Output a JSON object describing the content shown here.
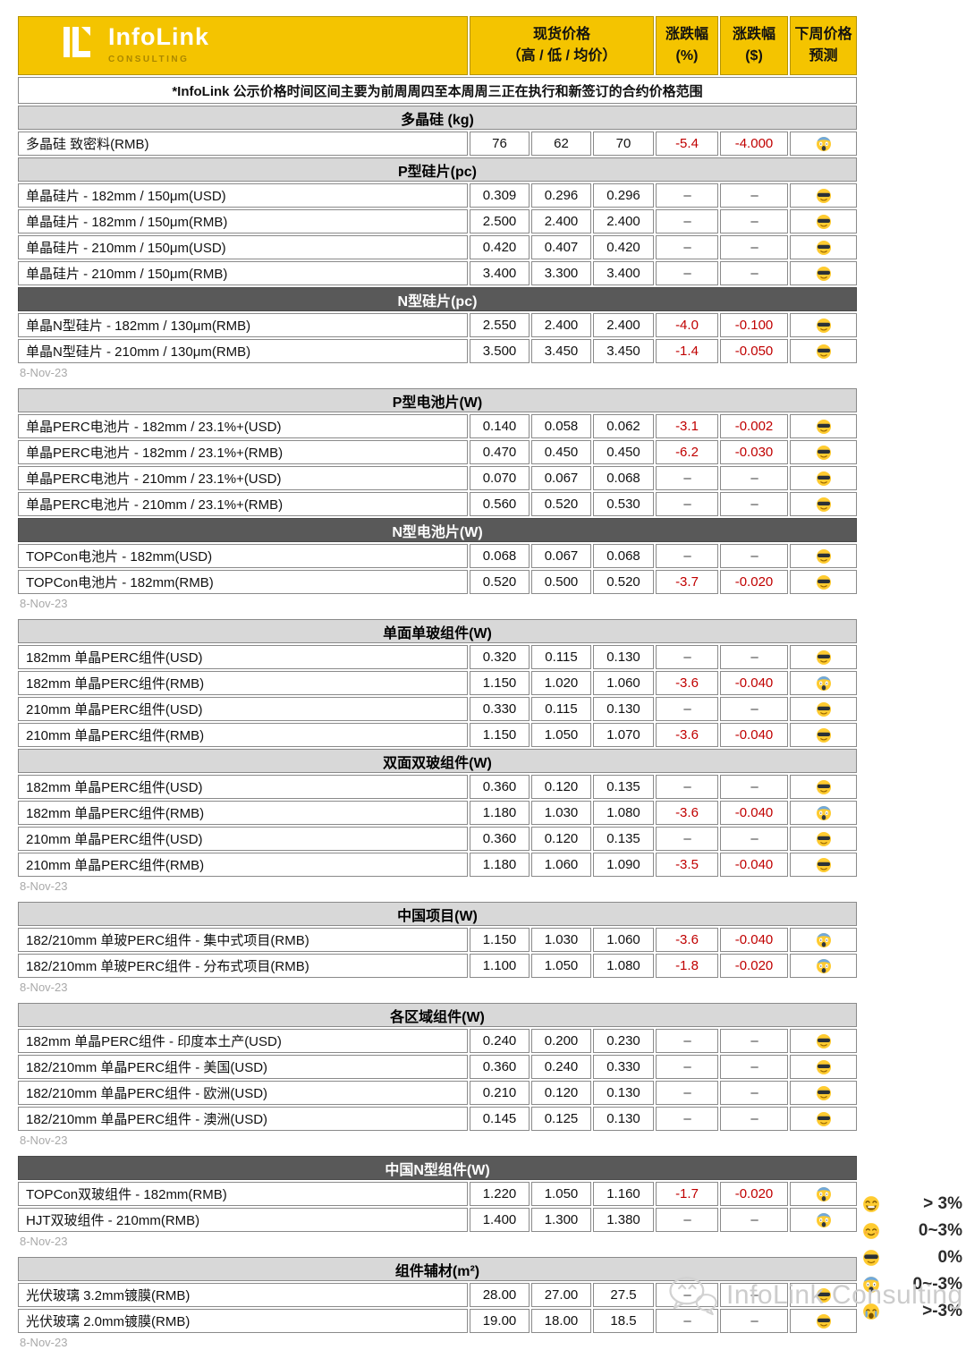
{
  "brand": {
    "name": "InfoLink",
    "sub": "CONSULTING"
  },
  "colors": {
    "brand_yellow": "#F4C400",
    "dark_header": "#595959",
    "light_header": "#D8D8D8",
    "negative_red": "#C00000"
  },
  "table_header": {
    "spot": "现货价格",
    "spot_sub": "（高 / 低 / 均价）",
    "chg_pct": "涨跌幅",
    "chg_pct_sub": "(%)",
    "chg_usd": "涨跌幅",
    "chg_usd_sub": "($)",
    "forecast": "下周价格",
    "forecast_sub": "预测"
  },
  "disclaimer": "*InfoLink 公示价格时间区间主要为前周周四至本周周三正在执行和新签订的合约价格范围",
  "groups": [
    {
      "date": "8-Nov-23",
      "sections": [
        {
          "title": "多晶硅 (kg)",
          "style": "light",
          "rows": [
            {
              "name": "多晶硅 致密料(RMB)",
              "high": "76",
              "low": "62",
              "avg": "70",
              "pct": "-5.4",
              "chg": "-4.000",
              "forecast": "scream"
            }
          ]
        },
        {
          "title": "P型硅片(pc)",
          "style": "light",
          "rows": [
            {
              "name": "单晶硅片 - 182mm / 150μm(USD)",
              "high": "0.309",
              "low": "0.296",
              "avg": "0.296",
              "pct": "–",
              "chg": "–",
              "forecast": "sunglasses"
            },
            {
              "name": "单晶硅片 - 182mm / 150μm(RMB)",
              "high": "2.500",
              "low": "2.400",
              "avg": "2.400",
              "pct": "–",
              "chg": "–",
              "forecast": "sunglasses"
            },
            {
              "name": "单晶硅片 - 210mm / 150μm(USD)",
              "high": "0.420",
              "low": "0.407",
              "avg": "0.420",
              "pct": "–",
              "chg": "–",
              "forecast": "sunglasses"
            },
            {
              "name": "单晶硅片 - 210mm / 150μm(RMB)",
              "high": "3.400",
              "low": "3.300",
              "avg": "3.400",
              "pct": "–",
              "chg": "–",
              "forecast": "sunglasses"
            }
          ]
        },
        {
          "title": "N型硅片(pc)",
          "style": "dark",
          "rows": [
            {
              "name": "单晶N型硅片 - 182mm / 130μm(RMB)",
              "high": "2.550",
              "low": "2.400",
              "avg": "2.400",
              "pct": "-4.0",
              "chg": "-0.100",
              "forecast": "sunglasses"
            },
            {
              "name": "单晶N型硅片 - 210mm / 130μm(RMB)",
              "high": "3.500",
              "low": "3.450",
              "avg": "3.450",
              "pct": "-1.4",
              "chg": "-0.050",
              "forecast": "sunglasses"
            }
          ]
        }
      ]
    },
    {
      "date": "8-Nov-23",
      "sections": [
        {
          "title": "P型电池片(W)",
          "style": "light",
          "rows": [
            {
              "name": "单晶PERC电池片 - 182mm / 23.1%+(USD)",
              "high": "0.140",
              "low": "0.058",
              "avg": "0.062",
              "pct": "-3.1",
              "chg": "-0.002",
              "forecast": "sunglasses"
            },
            {
              "name": "单晶PERC电池片 - 182mm / 23.1%+(RMB)",
              "high": "0.470",
              "low": "0.450",
              "avg": "0.450",
              "pct": "-6.2",
              "chg": "-0.030",
              "forecast": "sunglasses"
            },
            {
              "name": "单晶PERC电池片 - 210mm / 23.1%+(USD)",
              "high": "0.070",
              "low": "0.067",
              "avg": "0.068",
              "pct": "–",
              "chg": "–",
              "forecast": "sunglasses"
            },
            {
              "name": "单晶PERC电池片 - 210mm / 23.1%+(RMB)",
              "high": "0.560",
              "low": "0.520",
              "avg": "0.530",
              "pct": "–",
              "chg": "–",
              "forecast": "sunglasses"
            }
          ]
        },
        {
          "title": "N型电池片(W)",
          "style": "dark",
          "rows": [
            {
              "name": "TOPCon电池片 - 182mm(USD)",
              "high": "0.068",
              "low": "0.067",
              "avg": "0.068",
              "pct": "–",
              "chg": "–",
              "forecast": "sunglasses"
            },
            {
              "name": "TOPCon电池片 - 182mm(RMB)",
              "high": "0.520",
              "low": "0.500",
              "avg": "0.520",
              "pct": "-3.7",
              "chg": "-0.020",
              "forecast": "sunglasses"
            }
          ]
        }
      ]
    },
    {
      "date": "8-Nov-23",
      "sections": [
        {
          "title": "单面单玻组件(W)",
          "style": "light",
          "rows": [
            {
              "name": "182mm 单晶PERC组件(USD)",
              "high": "0.320",
              "low": "0.115",
              "avg": "0.130",
              "pct": "–",
              "chg": "–",
              "forecast": "sunglasses"
            },
            {
              "name": "182mm 单晶PERC组件(RMB)",
              "high": "1.150",
              "low": "1.020",
              "avg": "1.060",
              "pct": "-3.6",
              "chg": "-0.040",
              "forecast": "scream"
            },
            {
              "name": "210mm 单晶PERC组件(USD)",
              "high": "0.330",
              "low": "0.115",
              "avg": "0.130",
              "pct": "–",
              "chg": "–",
              "forecast": "sunglasses"
            },
            {
              "name": "210mm 单晶PERC组件(RMB)",
              "high": "1.150",
              "low": "1.050",
              "avg": "1.070",
              "pct": "-3.6",
              "chg": "-0.040",
              "forecast": "sunglasses"
            }
          ]
        },
        {
          "title": "双面双玻组件(W)",
          "style": "light",
          "rows": [
            {
              "name": "182mm 单晶PERC组件(USD)",
              "high": "0.360",
              "low": "0.120",
              "avg": "0.135",
              "pct": "–",
              "chg": "–",
              "forecast": "sunglasses"
            },
            {
              "name": "182mm 单晶PERC组件(RMB)",
              "high": "1.180",
              "low": "1.030",
              "avg": "1.080",
              "pct": "-3.6",
              "chg": "-0.040",
              "forecast": "scream"
            },
            {
              "name": "210mm 单晶PERC组件(USD)",
              "high": "0.360",
              "low": "0.120",
              "avg": "0.135",
              "pct": "–",
              "chg": "–",
              "forecast": "sunglasses"
            },
            {
              "name": "210mm 单晶PERC组件(RMB)",
              "high": "1.180",
              "low": "1.060",
              "avg": "1.090",
              "pct": "-3.5",
              "chg": "-0.040",
              "forecast": "sunglasses"
            }
          ]
        }
      ]
    },
    {
      "date": "8-Nov-23",
      "sections": [
        {
          "title": "中国项目(W)",
          "style": "light",
          "rows": [
            {
              "name": "182/210mm 单玻PERC组件 - 集中式项目(RMB)",
              "high": "1.150",
              "low": "1.030",
              "avg": "1.060",
              "pct": "-3.6",
              "chg": "-0.040",
              "forecast": "scream"
            },
            {
              "name": "182/210mm 单玻PERC组件 - 分布式项目(RMB)",
              "high": "1.100",
              "low": "1.050",
              "avg": "1.080",
              "pct": "-1.8",
              "chg": "-0.020",
              "forecast": "scream"
            }
          ]
        }
      ]
    },
    {
      "date": "8-Nov-23",
      "sections": [
        {
          "title": "各区域组件(W)",
          "style": "light",
          "rows": [
            {
              "name": "182mm 单晶PERC组件 - 印度本土产(USD)",
              "high": "0.240",
              "low": "0.200",
              "avg": "0.230",
              "pct": "–",
              "chg": "–",
              "forecast": "sunglasses"
            },
            {
              "name": "182/210mm 单晶PERC组件 - 美国(USD)",
              "high": "0.360",
              "low": "0.240",
              "avg": "0.330",
              "pct": "–",
              "chg": "–",
              "forecast": "sunglasses"
            },
            {
              "name": "182/210mm 单晶PERC组件 - 欧洲(USD)",
              "high": "0.210",
              "low": "0.120",
              "avg": "0.130",
              "pct": "–",
              "chg": "–",
              "forecast": "sunglasses"
            },
            {
              "name": "182/210mm 单晶PERC组件 - 澳洲(USD)",
              "high": "0.145",
              "low": "0.125",
              "avg": "0.130",
              "pct": "–",
              "chg": "–",
              "forecast": "sunglasses"
            }
          ]
        }
      ]
    },
    {
      "date": "8-Nov-23",
      "sections": [
        {
          "title": "中国N型组件(W)",
          "style": "dark",
          "rows": [
            {
              "name": "TOPCon双玻组件 - 182mm(RMB)",
              "high": "1.220",
              "low": "1.050",
              "avg": "1.160",
              "pct": "-1.7",
              "chg": "-0.020",
              "forecast": "scream"
            },
            {
              "name": "HJT双玻组件 - 210mm(RMB)",
              "high": "1.400",
              "low": "1.300",
              "avg": "1.380",
              "pct": "–",
              "chg": "–",
              "forecast": "scream"
            }
          ]
        }
      ]
    },
    {
      "date": "8-Nov-23",
      "sections": [
        {
          "title": "组件辅材(m²)",
          "style": "light",
          "rows": [
            {
              "name": "光伏玻璃 3.2mm镀膜(RMB)",
              "high": "28.00",
              "low": "27.00",
              "avg": "27.5",
              "pct": "–",
              "chg": "–",
              "forecast": "sunglasses"
            },
            {
              "name": "光伏玻璃 2.0mm镀膜(RMB)",
              "high": "19.00",
              "low": "18.00",
              "avg": "18.5",
              "pct": "–",
              "chg": "–",
              "forecast": "sunglasses"
            }
          ]
        }
      ]
    }
  ],
  "legend": [
    {
      "emoji": "grin",
      "label": "> 3%"
    },
    {
      "emoji": "smile",
      "label": "0~3%"
    },
    {
      "emoji": "sunglasses",
      "label": "0%"
    },
    {
      "emoji": "scream",
      "label": "0~-3%"
    },
    {
      "emoji": "cry",
      "label": ">-3%"
    }
  ],
  "watermark": {
    "text": "InfoLink Consulting"
  }
}
